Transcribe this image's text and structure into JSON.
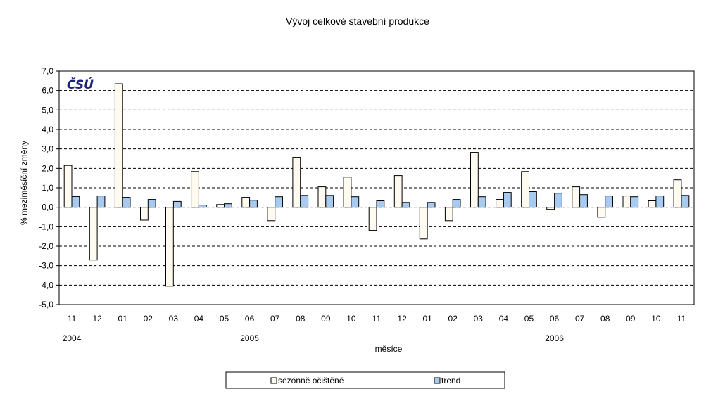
{
  "chart_data": {
    "type": "bar",
    "title": "Vývoj celkové stavební produkce",
    "xlabel": "měsíce",
    "ylabel": "% meziměsíční změny",
    "ylim": [
      -5.0,
      7.0
    ],
    "yticks": [
      "7,0",
      "6,0",
      "5,0",
      "4,0",
      "3,0",
      "2,0",
      "1,0",
      "0,0",
      "-1,0",
      "-2,0",
      "-3,0",
      "-4,0",
      "-5,0"
    ],
    "ytick_values": [
      7,
      6,
      5,
      4,
      3,
      2,
      1,
      0,
      -1,
      -2,
      -3,
      -4,
      -5
    ],
    "grid": "horizontal dashed",
    "categories": [
      "11",
      "12",
      "01",
      "02",
      "03",
      "04",
      "05",
      "06",
      "07",
      "08",
      "09",
      "10",
      "11",
      "12",
      "01",
      "02",
      "03",
      "04",
      "05",
      "06",
      "07",
      "08",
      "09",
      "10",
      "11"
    ],
    "years": [
      {
        "label": "2004",
        "category_index": 0
      },
      {
        "label": "2005",
        "category_index": 7
      },
      {
        "label": "2006",
        "category_index": 19
      }
    ],
    "series": [
      {
        "name": "sezónně očištěné",
        "color": "#FFFBF0",
        "values": [
          2.15,
          -2.71,
          6.35,
          -0.66,
          -4.05,
          1.84,
          0.14,
          0.51,
          -0.69,
          2.57,
          1.05,
          1.55,
          -1.19,
          1.63,
          -1.63,
          -0.69,
          2.82,
          0.4,
          1.84,
          -0.11,
          1.05,
          -0.51,
          0.58,
          0.33,
          1.41
        ]
      },
      {
        "name": "trend",
        "color": "#A6CAF0",
        "values": [
          0.55,
          0.58,
          0.51,
          0.4,
          0.3,
          0.11,
          0.18,
          0.36,
          0.54,
          0.61,
          0.61,
          0.54,
          0.33,
          0.25,
          0.25,
          0.4,
          0.54,
          0.76,
          0.8,
          0.72,
          0.65,
          0.58,
          0.54,
          0.58,
          0.61
        ]
      }
    ],
    "legend": {
      "placement": "bottom"
    },
    "logo_text": "ČSÚ"
  }
}
